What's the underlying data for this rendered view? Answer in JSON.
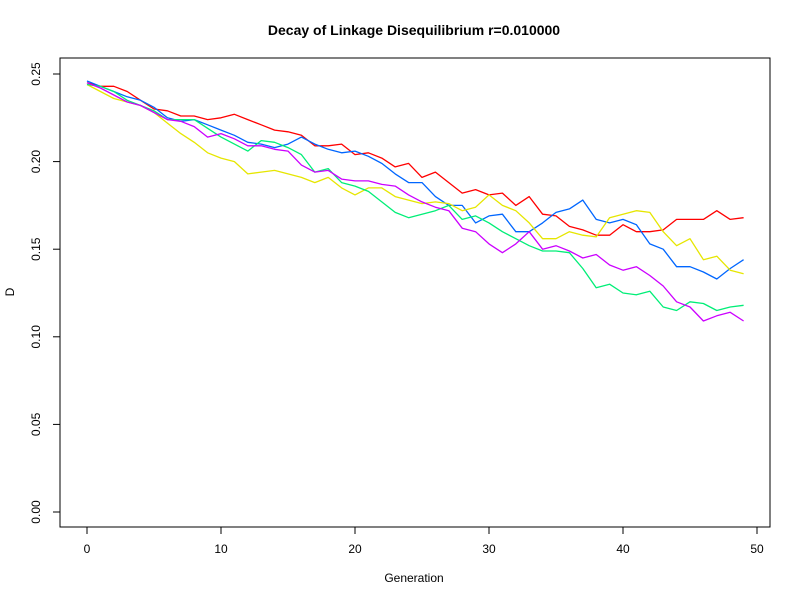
{
  "chart_data": {
    "type": "line",
    "title": "Decay of Linkage Disequilibrium r=0.010000",
    "xlabel": "Generation",
    "ylabel": "D",
    "xlim": [
      0,
      50
    ],
    "ylim": [
      0,
      0.25
    ],
    "x_ticks": [
      "0",
      "10",
      "20",
      "30",
      "40",
      "50"
    ],
    "y_ticks": [
      "0.00",
      "0.05",
      "0.10",
      "0.15",
      "0.20",
      "0.25"
    ],
    "x": [
      0,
      1,
      2,
      3,
      4,
      5,
      6,
      7,
      8,
      9,
      10,
      11,
      12,
      13,
      14,
      15,
      16,
      17,
      18,
      19,
      20,
      21,
      22,
      23,
      24,
      25,
      26,
      27,
      28,
      29,
      30,
      31,
      32,
      33,
      34,
      35,
      36,
      37,
      38,
      39,
      40,
      41,
      42,
      43,
      44,
      45,
      46,
      47,
      48,
      49
    ],
    "series": [
      {
        "color": "#ff0000",
        "values": [
          0.245,
          0.243,
          0.243,
          0.24,
          0.235,
          0.23,
          0.229,
          0.226,
          0.226,
          0.224,
          0.225,
          0.227,
          0.224,
          0.221,
          0.218,
          0.217,
          0.215,
          0.209,
          0.209,
          0.21,
          0.204,
          0.205,
          0.202,
          0.197,
          0.199,
          0.191,
          0.194,
          0.188,
          0.182,
          0.184,
          0.181,
          0.182,
          0.175,
          0.18,
          0.17,
          0.169,
          0.163,
          0.161,
          0.158,
          0.158,
          0.164,
          0.16,
          0.16,
          0.161,
          0.167,
          0.167,
          0.167,
          0.172,
          0.167,
          0.168
        ]
      },
      {
        "color": "#0066ff",
        "values": [
          0.246,
          0.243,
          0.24,
          0.237,
          0.235,
          0.231,
          0.225,
          0.223,
          0.224,
          0.221,
          0.218,
          0.215,
          0.211,
          0.21,
          0.208,
          0.21,
          0.214,
          0.21,
          0.207,
          0.205,
          0.206,
          0.203,
          0.199,
          0.193,
          0.188,
          0.188,
          0.18,
          0.175,
          0.175,
          0.165,
          0.169,
          0.17,
          0.16,
          0.16,
          0.165,
          0.171,
          0.173,
          0.178,
          0.167,
          0.165,
          0.167,
          0.164,
          0.153,
          0.15,
          0.14,
          0.14,
          0.137,
          0.133,
          0.139,
          0.144
        ]
      },
      {
        "color": "#e6e600",
        "values": [
          0.244,
          0.24,
          0.236,
          0.234,
          0.232,
          0.228,
          0.222,
          0.216,
          0.211,
          0.205,
          0.202,
          0.2,
          0.193,
          0.194,
          0.195,
          0.193,
          0.191,
          0.188,
          0.191,
          0.185,
          0.181,
          0.185,
          0.185,
          0.18,
          0.178,
          0.176,
          0.177,
          0.176,
          0.172,
          0.174,
          0.181,
          0.175,
          0.172,
          0.165,
          0.156,
          0.156,
          0.16,
          0.158,
          0.157,
          0.168,
          0.17,
          0.172,
          0.171,
          0.16,
          0.152,
          0.156,
          0.144,
          0.146,
          0.138,
          0.136
        ]
      },
      {
        "color": "#00ee77",
        "values": [
          0.244,
          0.243,
          0.24,
          0.235,
          0.232,
          0.229,
          0.224,
          0.224,
          0.224,
          0.219,
          0.214,
          0.21,
          0.206,
          0.212,
          0.211,
          0.208,
          0.204,
          0.194,
          0.196,
          0.188,
          0.186,
          0.183,
          0.177,
          0.171,
          0.168,
          0.17,
          0.172,
          0.175,
          0.167,
          0.169,
          0.165,
          0.16,
          0.156,
          0.152,
          0.149,
          0.149,
          0.148,
          0.139,
          0.128,
          0.13,
          0.125,
          0.124,
          0.126,
          0.117,
          0.115,
          0.12,
          0.119,
          0.115,
          0.117,
          0.118
        ]
      },
      {
        "color": "#cc00ff",
        "values": [
          0.245,
          0.242,
          0.238,
          0.234,
          0.232,
          0.228,
          0.224,
          0.223,
          0.22,
          0.214,
          0.216,
          0.213,
          0.209,
          0.209,
          0.207,
          0.206,
          0.198,
          0.194,
          0.195,
          0.19,
          0.189,
          0.189,
          0.187,
          0.186,
          0.181,
          0.177,
          0.174,
          0.172,
          0.162,
          0.16,
          0.153,
          0.148,
          0.153,
          0.16,
          0.15,
          0.152,
          0.149,
          0.145,
          0.147,
          0.141,
          0.138,
          0.14,
          0.135,
          0.129,
          0.12,
          0.117,
          0.109,
          0.112,
          0.114,
          0.109
        ]
      }
    ]
  }
}
